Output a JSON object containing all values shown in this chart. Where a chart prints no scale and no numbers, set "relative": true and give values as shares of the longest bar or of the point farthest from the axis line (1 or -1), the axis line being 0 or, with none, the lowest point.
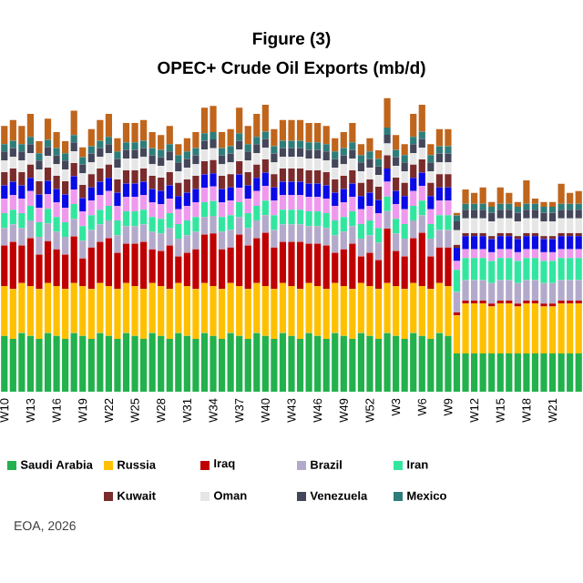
{
  "chart_data": {
    "type": "bar",
    "title": "Figure (3)",
    "subtitle": "OPEC+ Crude Oil Exports (mb/d)",
    "stacked": true,
    "relative": true,
    "legend": "bottom",
    "annotations": [
      "EOA, 2026"
    ],
    "categories": [
      "W10",
      null,
      null,
      "W13",
      null,
      null,
      "W16",
      null,
      null,
      "W19",
      null,
      null,
      "W22",
      null,
      null,
      "W25",
      null,
      null,
      "W28",
      null,
      null,
      "W31",
      null,
      null,
      "W34",
      null,
      null,
      "W37",
      null,
      null,
      "W40",
      null,
      null,
      "W43",
      null,
      null,
      "W46",
      null,
      null,
      "W49",
      null,
      null,
      "W52",
      null,
      null,
      "W3",
      null,
      null,
      "W6",
      null,
      null,
      "W9",
      null,
      null,
      "W12",
      null,
      null,
      "W15",
      null,
      null,
      "W18",
      null,
      null,
      "W21",
      null,
      null,
      null
    ],
    "series": [
      {
        "name": "Saudi Arabia",
        "color": "#22b14c",
        "values": [
          0.19,
          0.18,
          0.2,
          0.19,
          0.18,
          0.2,
          0.19,
          0.18,
          0.2,
          0.19,
          0.18,
          0.2,
          0.19,
          0.18,
          0.2,
          0.19,
          0.18,
          0.2,
          0.19,
          0.18,
          0.2,
          0.19,
          0.18,
          0.2,
          0.19,
          0.18,
          0.2,
          0.19,
          0.18,
          0.2,
          0.19,
          0.18,
          0.2,
          0.19,
          0.18,
          0.2,
          0.19,
          0.18,
          0.2,
          0.19,
          0.18,
          0.2,
          0.19,
          0.18,
          0.2,
          0.19,
          0.18,
          0.2,
          0.19,
          0.18,
          0.2,
          0.19,
          0.13,
          0.13,
          0.13,
          0.13,
          0.13,
          0.13,
          0.13,
          0.13,
          0.13,
          0.13,
          0.13,
          0.13,
          0.13,
          0.13,
          0.13
        ]
      },
      {
        "name": "Russia",
        "color": "#ffc000",
        "values": [
          0.17,
          0.17,
          0.17,
          0.17,
          0.17,
          0.17,
          0.17,
          0.17,
          0.17,
          0.17,
          0.17,
          0.17,
          0.17,
          0.17,
          0.17,
          0.17,
          0.17,
          0.17,
          0.17,
          0.17,
          0.17,
          0.17,
          0.17,
          0.17,
          0.17,
          0.17,
          0.17,
          0.17,
          0.17,
          0.17,
          0.17,
          0.17,
          0.17,
          0.17,
          0.17,
          0.17,
          0.17,
          0.17,
          0.17,
          0.17,
          0.17,
          0.17,
          0.17,
          0.17,
          0.17,
          0.17,
          0.17,
          0.17,
          0.17,
          0.17,
          0.17,
          0.17,
          0.13,
          0.17,
          0.17,
          0.17,
          0.16,
          0.17,
          0.17,
          0.16,
          0.17,
          0.17,
          0.16,
          0.16,
          0.17,
          0.17,
          0.17
        ]
      },
      {
        "name": "Iraq",
        "color": "#c00000",
        "values": [
          0.138,
          0.16,
          0.128,
          0.163,
          0.117,
          0.143,
          0.125,
          0.117,
          0.159,
          0.094,
          0.141,
          0.14,
          0.163,
          0.123,
          0.134,
          0.144,
          0.16,
          0.115,
          0.119,
          0.148,
          0.091,
          0.113,
          0.135,
          0.165,
          0.179,
          0.135,
          0.121,
          0.175,
          0.148,
          0.153,
          0.181,
          0.141,
          0.14,
          0.15,
          0.16,
          0.134,
          0.144,
          0.148,
          0.103,
          0.125,
          0.154,
          0.091,
          0.113,
          0.098,
          0.185,
          0.119,
          0.111,
          0.153,
          0.181,
          0.111,
          0.121,
          0.131,
          0.01,
          0.01,
          0.01,
          0.01,
          0.01,
          0.01,
          0.01,
          0.01,
          0.01,
          0.01,
          0.01,
          0.01,
          0.01,
          0.01,
          0.01
        ]
      },
      {
        "name": "Brazil",
        "color": "#b3aacb",
        "values": [
          0.06,
          0.06,
          0.06,
          0.06,
          0.06,
          0.06,
          0.06,
          0.06,
          0.06,
          0.06,
          0.06,
          0.06,
          0.06,
          0.06,
          0.06,
          0.06,
          0.06,
          0.06,
          0.06,
          0.06,
          0.06,
          0.06,
          0.06,
          0.06,
          0.06,
          0.06,
          0.06,
          0.06,
          0.06,
          0.06,
          0.06,
          0.06,
          0.06,
          0.06,
          0.06,
          0.06,
          0.06,
          0.06,
          0.06,
          0.06,
          0.06,
          0.06,
          0.06,
          0.06,
          0.06,
          0.06,
          0.06,
          0.06,
          0.06,
          0.06,
          0.06,
          0.06,
          0.07,
          0.07,
          0.07,
          0.07,
          0.07,
          0.07,
          0.07,
          0.07,
          0.07,
          0.07,
          0.07,
          0.07,
          0.07,
          0.07,
          0.07
        ]
      },
      {
        "name": "Iran",
        "color": "#33e6a0",
        "values": [
          0.05,
          0.05,
          0.05,
          0.05,
          0.05,
          0.05,
          0.05,
          0.05,
          0.05,
          0.05,
          0.05,
          0.05,
          0.05,
          0.05,
          0.05,
          0.05,
          0.05,
          0.05,
          0.05,
          0.05,
          0.05,
          0.05,
          0.05,
          0.05,
          0.05,
          0.05,
          0.05,
          0.05,
          0.05,
          0.05,
          0.05,
          0.05,
          0.05,
          0.05,
          0.05,
          0.05,
          0.05,
          0.05,
          0.05,
          0.05,
          0.05,
          0.05,
          0.05,
          0.05,
          0.05,
          0.05,
          0.05,
          0.05,
          0.05,
          0.05,
          0.05,
          0.05,
          0.075,
          0.075,
          0.075,
          0.075,
          0.075,
          0.075,
          0.075,
          0.075,
          0.075,
          0.075,
          0.075,
          0.075,
          0.075,
          0.075,
          0.075
        ]
      },
      {
        "color": "#ee99ee",
        "values": [
          0.05,
          0.05,
          0.05,
          0.05,
          0.05,
          0.05,
          0.05,
          0.05,
          0.05,
          0.05,
          0.05,
          0.05,
          0.05,
          0.05,
          0.05,
          0.05,
          0.05,
          0.05,
          0.05,
          0.05,
          0.05,
          0.05,
          0.05,
          0.05,
          0.05,
          0.05,
          0.05,
          0.05,
          0.05,
          0.05,
          0.05,
          0.05,
          0.05,
          0.05,
          0.05,
          0.05,
          0.05,
          0.05,
          0.05,
          0.05,
          0.05,
          0.05,
          0.05,
          0.05,
          0.05,
          0.05,
          0.05,
          0.05,
          0.05,
          0.05,
          0.05,
          0.05,
          0.03,
          0.03,
          0.03,
          0.03,
          0.03,
          0.03,
          0.03,
          0.03,
          0.03,
          0.03,
          0.03,
          0.03,
          0.03,
          0.03,
          0.03
        ]
      },
      {
        "color": "#0a0ae6",
        "values": [
          0.045,
          0.045,
          0.045,
          0.045,
          0.045,
          0.045,
          0.045,
          0.045,
          0.045,
          0.045,
          0.045,
          0.045,
          0.045,
          0.045,
          0.045,
          0.045,
          0.045,
          0.045,
          0.045,
          0.045,
          0.045,
          0.045,
          0.045,
          0.045,
          0.045,
          0.045,
          0.045,
          0.045,
          0.045,
          0.045,
          0.045,
          0.045,
          0.045,
          0.045,
          0.045,
          0.045,
          0.045,
          0.045,
          0.045,
          0.045,
          0.045,
          0.045,
          0.045,
          0.045,
          0.045,
          0.045,
          0.045,
          0.045,
          0.045,
          0.045,
          0.045,
          0.045,
          0.045,
          0.045,
          0.045,
          0.045,
          0.045,
          0.045,
          0.045,
          0.045,
          0.045,
          0.045,
          0.045,
          0.045,
          0.045,
          0.045,
          0.045
        ]
      },
      {
        "name": "Kuwait",
        "color": "#7b2b2b",
        "values": [
          0.045,
          0.045,
          0.045,
          0.045,
          0.045,
          0.045,
          0.045,
          0.045,
          0.045,
          0.045,
          0.045,
          0.045,
          0.045,
          0.045,
          0.045,
          0.045,
          0.045,
          0.045,
          0.045,
          0.045,
          0.045,
          0.045,
          0.045,
          0.045,
          0.045,
          0.045,
          0.045,
          0.045,
          0.045,
          0.045,
          0.045,
          0.045,
          0.045,
          0.045,
          0.045,
          0.045,
          0.045,
          0.045,
          0.045,
          0.045,
          0.045,
          0.045,
          0.045,
          0.045,
          0.045,
          0.045,
          0.045,
          0.045,
          0.045,
          0.045,
          0.045,
          0.045,
          0.01,
          0.01,
          0.01,
          0.01,
          0.01,
          0.01,
          0.01,
          0.01,
          0.01,
          0.01,
          0.01,
          0.01,
          0.01,
          0.01,
          0.01
        ]
      },
      {
        "name": "Oman",
        "color": "#e6e6e6",
        "values": [
          0.04,
          0.04,
          0.04,
          0.04,
          0.04,
          0.04,
          0.04,
          0.04,
          0.04,
          0.04,
          0.04,
          0.04,
          0.04,
          0.04,
          0.04,
          0.04,
          0.04,
          0.04,
          0.04,
          0.04,
          0.04,
          0.04,
          0.04,
          0.04,
          0.04,
          0.04,
          0.04,
          0.04,
          0.04,
          0.04,
          0.04,
          0.04,
          0.04,
          0.04,
          0.04,
          0.04,
          0.04,
          0.04,
          0.04,
          0.04,
          0.04,
          0.04,
          0.04,
          0.04,
          0.04,
          0.04,
          0.04,
          0.04,
          0.04,
          0.04,
          0.04,
          0.04,
          0.05,
          0.05,
          0.05,
          0.05,
          0.05,
          0.05,
          0.05,
          0.05,
          0.05,
          0.05,
          0.05,
          0.05,
          0.05,
          0.05,
          0.05
        ]
      },
      {
        "name": "Venezuela",
        "color": "#44475a",
        "values": [
          0.03,
          0.03,
          0.03,
          0.03,
          0.03,
          0.03,
          0.03,
          0.03,
          0.03,
          0.03,
          0.03,
          0.03,
          0.03,
          0.03,
          0.03,
          0.03,
          0.03,
          0.03,
          0.03,
          0.03,
          0.03,
          0.03,
          0.03,
          0.03,
          0.03,
          0.03,
          0.03,
          0.03,
          0.03,
          0.03,
          0.03,
          0.03,
          0.03,
          0.03,
          0.03,
          0.03,
          0.03,
          0.03,
          0.03,
          0.03,
          0.03,
          0.03,
          0.03,
          0.03,
          0.03,
          0.03,
          0.03,
          0.03,
          0.03,
          0.03,
          0.03,
          0.03,
          0.03,
          0.03,
          0.03,
          0.03,
          0.03,
          0.03,
          0.03,
          0.03,
          0.03,
          0.03,
          0.03,
          0.03,
          0.03,
          0.03,
          0.03
        ]
      },
      {
        "name": "Mexico",
        "color": "#2e7d7a",
        "values": [
          0.025,
          0.025,
          0.025,
          0.025,
          0.025,
          0.025,
          0.025,
          0.025,
          0.025,
          0.025,
          0.025,
          0.025,
          0.025,
          0.025,
          0.025,
          0.025,
          0.025,
          0.025,
          0.025,
          0.025,
          0.025,
          0.025,
          0.025,
          0.025,
          0.025,
          0.025,
          0.025,
          0.025,
          0.025,
          0.025,
          0.025,
          0.025,
          0.025,
          0.025,
          0.025,
          0.025,
          0.025,
          0.025,
          0.025,
          0.025,
          0.025,
          0.025,
          0.025,
          0.025,
          0.025,
          0.025,
          0.025,
          0.025,
          0.025,
          0.025,
          0.025,
          0.025,
          0.02,
          0.02,
          0.02,
          0.02,
          0.02,
          0.02,
          0.02,
          0.02,
          0.02,
          0.02,
          0.02,
          0.02,
          0.02,
          0.02,
          0.02
        ]
      },
      {
        "color": "#c0651c",
        "values": [
          0.062,
          0.07,
          0.062,
          0.078,
          0.041,
          0.072,
          0.054,
          0.041,
          0.083,
          0.033,
          0.058,
          0.07,
          0.078,
          0.045,
          0.066,
          0.066,
          0.07,
          0.054,
          0.05,
          0.062,
          0.037,
          0.045,
          0.054,
          0.087,
          0.089,
          0.054,
          0.058,
          0.087,
          0.062,
          0.078,
          0.091,
          0.058,
          0.07,
          0.07,
          0.07,
          0.066,
          0.066,
          0.062,
          0.045,
          0.054,
          0.066,
          0.037,
          0.045,
          0.029,
          0.1,
          0.05,
          0.037,
          0.078,
          0.091,
          0.037,
          0.058,
          0.058,
          0.009,
          0.049,
          0.037,
          0.056,
          0.016,
          0.056,
          0.037,
          0.016,
          0.08,
          0.018,
          0.016,
          0.016,
          0.068,
          0.037,
          0.043
        ]
      }
    ]
  }
}
